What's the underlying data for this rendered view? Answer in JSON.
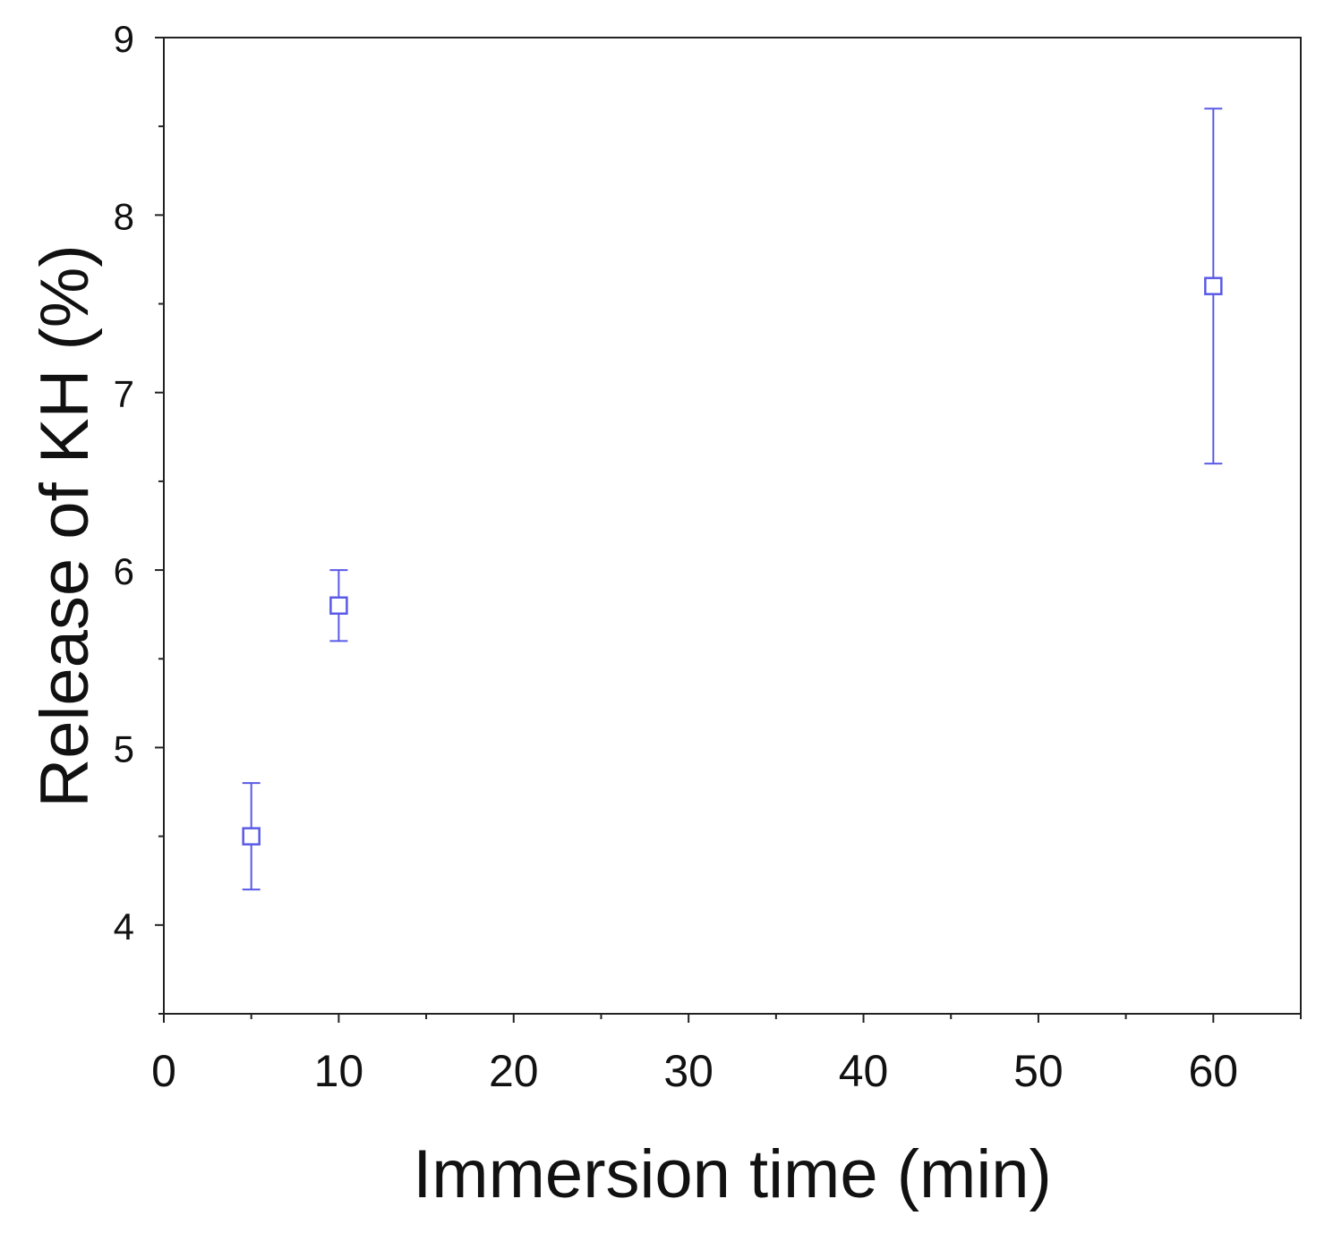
{
  "chart_data": {
    "type": "scatter",
    "title": "",
    "xlabel": "Immersion time (min)",
    "ylabel": "Release of KH (%)",
    "xlim": [
      0,
      65
    ],
    "ylim": [
      3.5,
      9
    ],
    "x_ticks": [
      0,
      10,
      20,
      30,
      40,
      50,
      60
    ],
    "x_minor_ticks": [
      5,
      15,
      25,
      35,
      45,
      55,
      65
    ],
    "y_ticks": [
      4,
      5,
      6,
      7,
      8,
      9
    ],
    "y_minor_ticks": [
      3.5,
      4.5,
      5.5,
      6.5,
      7.5,
      8.5
    ],
    "grid": false,
    "legend": "none",
    "marker": "open-square",
    "color": "#5a5ae6",
    "series": [
      {
        "x": [
          5,
          10,
          60
        ],
        "y": [
          4.5,
          5.8,
          7.6
        ],
        "y_err_low": [
          4.2,
          5.6,
          6.6
        ],
        "y_err_high": [
          4.8,
          6.0,
          8.6
        ]
      }
    ]
  }
}
